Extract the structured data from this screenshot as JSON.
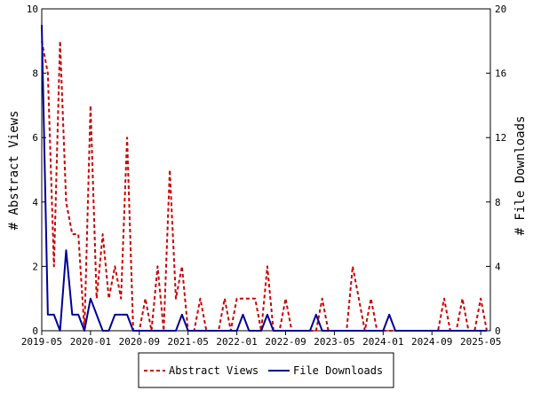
{
  "chart_data": {
    "type": "line",
    "ylabel": "# Abstract Views",
    "y2label": "# File Downloads",
    "ylim": [
      0,
      10
    ],
    "y2lim": [
      0,
      20
    ],
    "yticks": [
      0,
      2,
      4,
      6,
      8,
      10
    ],
    "y2ticks": [
      0,
      4,
      8,
      12,
      16,
      20
    ],
    "xticks": [
      "2019-05",
      "2020-01",
      "2020-09",
      "2021-05",
      "2022-01",
      "2022-09",
      "2023-05",
      "2024-01",
      "2024-09",
      "2025-05"
    ],
    "x": [
      "2019-05",
      "2019-06",
      "2019-07",
      "2019-08",
      "2019-09",
      "2019-10",
      "2019-11",
      "2019-12",
      "2020-01",
      "2020-02",
      "2020-03",
      "2020-04",
      "2020-05",
      "2020-06",
      "2020-07",
      "2020-08",
      "2020-09",
      "2020-10",
      "2020-11",
      "2020-12",
      "2021-01",
      "2021-02",
      "2021-03",
      "2021-04",
      "2021-05",
      "2021-06",
      "2021-07",
      "2021-08",
      "2021-09",
      "2021-10",
      "2021-11",
      "2021-12",
      "2022-01",
      "2022-02",
      "2022-03",
      "2022-04",
      "2022-05",
      "2022-06",
      "2022-07",
      "2022-08",
      "2022-09",
      "2022-10",
      "2022-11",
      "2022-12",
      "2023-01",
      "2023-02",
      "2023-03",
      "2023-04",
      "2023-05",
      "2023-06",
      "2023-07",
      "2023-08",
      "2023-09",
      "2023-10",
      "2023-11",
      "2023-12",
      "2024-01",
      "2024-02",
      "2024-03",
      "2024-04",
      "2024-05",
      "2024-06",
      "2024-07",
      "2024-08",
      "2024-09",
      "2024-10",
      "2024-11",
      "2024-12",
      "2025-01",
      "2025-02",
      "2025-03",
      "2025-04",
      "2025-05",
      "2025-06"
    ],
    "series": [
      {
        "name": "Abstract Views",
        "axis": "left",
        "color": "#cc0000",
        "style": "dashed",
        "values": [
          9,
          8,
          2,
          9,
          4,
          3,
          3,
          0,
          7,
          1,
          3,
          1,
          2,
          1,
          6,
          0,
          0,
          1,
          0,
          2,
          0,
          5,
          1,
          2,
          0,
          0,
          1,
          0,
          0,
          0,
          1,
          0,
          1,
          1,
          1,
          1,
          0,
          2,
          0,
          0,
          1,
          0,
          0,
          0,
          0,
          0,
          1,
          0,
          0,
          0,
          0,
          2,
          1,
          0,
          1,
          0,
          0,
          0,
          0,
          0,
          0,
          0,
          0,
          0,
          0,
          0,
          1,
          0,
          0,
          1,
          0,
          0,
          1,
          0
        ]
      },
      {
        "name": "File Downloads",
        "axis": "right",
        "color": "#000099",
        "style": "solid",
        "values": [
          19,
          1,
          1,
          0,
          5,
          1,
          1,
          0,
          2,
          1,
          0,
          0,
          1,
          1,
          1,
          0,
          0,
          0,
          0,
          0,
          0,
          0,
          0,
          1,
          0,
          0,
          0,
          0,
          0,
          0,
          0,
          0,
          0,
          1,
          0,
          0,
          0,
          1,
          0,
          0,
          0,
          0,
          0,
          0,
          0,
          1,
          0,
          0,
          0,
          0,
          0,
          0,
          0,
          0,
          0,
          0,
          0,
          1,
          0,
          0,
          0,
          0,
          0,
          0,
          0,
          0,
          0,
          0,
          0,
          0,
          0,
          0,
          0,
          0
        ]
      }
    ]
  }
}
